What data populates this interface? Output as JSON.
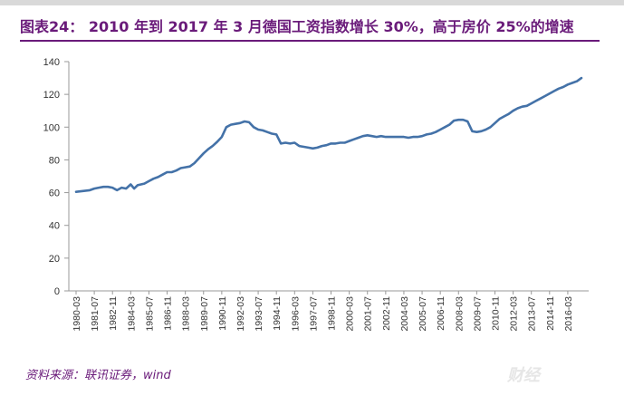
{
  "header": {
    "title": "图表24： 2010 年到 2017 年 3 月德国工资指数增长 30%，高于房价 25%的增速"
  },
  "footer": {
    "source": "资料来源：联讯证券，wind",
    "watermark": "财经"
  },
  "colors": {
    "title": "#6a1b7a",
    "line": "#4472a8",
    "axis": "#999999"
  },
  "chart_data": {
    "type": "line",
    "title": "",
    "xlabel": "",
    "ylabel": "",
    "ylim": [
      0,
      140
    ],
    "yticks": [
      0,
      20,
      40,
      60,
      80,
      100,
      120,
      140
    ],
    "xticks": [
      "1980-03",
      "1981-07",
      "1982-11",
      "1984-03",
      "1985-07",
      "1986-11",
      "1988-03",
      "1989-07",
      "1990-11",
      "1992-03",
      "1993-07",
      "1994-11",
      "1996-03",
      "1997-07",
      "1998-11",
      "2000-03",
      "2001-07",
      "2002-11",
      "2004-03",
      "2005-07",
      "2006-11",
      "2008-03",
      "2009-07",
      "2010-11",
      "2012-03",
      "2013-07",
      "2014-11",
      "2016-03"
    ],
    "grid": false,
    "legend": "none",
    "series": [
      {
        "name": "",
        "points": [
          [
            "1980-03",
            60.5
          ],
          [
            "1980-09",
            61
          ],
          [
            "1981-03",
            61.5
          ],
          [
            "1981-07",
            62.5
          ],
          [
            "1981-11",
            63
          ],
          [
            "1982-03",
            63.5
          ],
          [
            "1982-07",
            63.5
          ],
          [
            "1982-11",
            63
          ],
          [
            "1983-03",
            61.5
          ],
          [
            "1983-07",
            63
          ],
          [
            "1983-11",
            62.5
          ],
          [
            "1984-03",
            65
          ],
          [
            "1984-06",
            62.5
          ],
          [
            "1984-09",
            64.5
          ],
          [
            "1985-03",
            65.5
          ],
          [
            "1985-07",
            67
          ],
          [
            "1985-11",
            68.5
          ],
          [
            "1986-03",
            69.5
          ],
          [
            "1986-07",
            71
          ],
          [
            "1986-11",
            72.5
          ],
          [
            "1987-03",
            72.5
          ],
          [
            "1987-07",
            73.5
          ],
          [
            "1987-11",
            75
          ],
          [
            "1988-03",
            75.5
          ],
          [
            "1988-07",
            76
          ],
          [
            "1988-11",
            78
          ],
          [
            "1989-03",
            81
          ],
          [
            "1989-07",
            84
          ],
          [
            "1989-11",
            86.5
          ],
          [
            "1990-03",
            88.5
          ],
          [
            "1990-07",
            91
          ],
          [
            "1990-11",
            94
          ],
          [
            "1991-03",
            100
          ],
          [
            "1991-07",
            101.5
          ],
          [
            "1991-11",
            102
          ],
          [
            "1992-03",
            102.5
          ],
          [
            "1992-07",
            103.5
          ],
          [
            "1992-11",
            103
          ],
          [
            "1993-03",
            100
          ],
          [
            "1993-07",
            98.5
          ],
          [
            "1993-11",
            98
          ],
          [
            "1994-03",
            97
          ],
          [
            "1994-07",
            96
          ],
          [
            "1994-11",
            95.5
          ],
          [
            "1995-03",
            90
          ],
          [
            "1995-07",
            90.5
          ],
          [
            "1995-11",
            90
          ],
          [
            "1996-03",
            90.5
          ],
          [
            "1996-07",
            88.5
          ],
          [
            "1996-11",
            88
          ],
          [
            "1997-03",
            87.5
          ],
          [
            "1997-07",
            87
          ],
          [
            "1997-11",
            87.5
          ],
          [
            "1998-03",
            88.5
          ],
          [
            "1998-07",
            89
          ],
          [
            "1998-11",
            90
          ],
          [
            "1999-03",
            90
          ],
          [
            "1999-07",
            90.5
          ],
          [
            "1999-11",
            90.5
          ],
          [
            "2000-03",
            91.5
          ],
          [
            "2000-07",
            92.5
          ],
          [
            "2000-11",
            93.5
          ],
          [
            "2001-03",
            94.5
          ],
          [
            "2001-07",
            95
          ],
          [
            "2001-11",
            94.5
          ],
          [
            "2002-03",
            94
          ],
          [
            "2002-07",
            94.5
          ],
          [
            "2002-11",
            94
          ],
          [
            "2003-03",
            94
          ],
          [
            "2003-07",
            94
          ],
          [
            "2003-11",
            94
          ],
          [
            "2004-03",
            94
          ],
          [
            "2004-07",
            93.5
          ],
          [
            "2004-11",
            94
          ],
          [
            "2005-03",
            94
          ],
          [
            "2005-07",
            94.5
          ],
          [
            "2005-11",
            95.5
          ],
          [
            "2006-03",
            96
          ],
          [
            "2006-07",
            97
          ],
          [
            "2006-11",
            98.5
          ],
          [
            "2007-03",
            100
          ],
          [
            "2007-07",
            101.5
          ],
          [
            "2007-11",
            104
          ],
          [
            "2008-03",
            104.5
          ],
          [
            "2008-07",
            104.5
          ],
          [
            "2008-11",
            103.5
          ],
          [
            "2009-03",
            97.5
          ],
          [
            "2009-07",
            97
          ],
          [
            "2009-11",
            97.5
          ],
          [
            "2010-03",
            98.5
          ],
          [
            "2010-07",
            100
          ],
          [
            "2010-11",
            102.5
          ],
          [
            "2011-03",
            105
          ],
          [
            "2011-07",
            106.5
          ],
          [
            "2011-11",
            108
          ],
          [
            "2012-03",
            110
          ],
          [
            "2012-07",
            111.5
          ],
          [
            "2012-11",
            112.5
          ],
          [
            "2013-03",
            113
          ],
          [
            "2013-07",
            114.5
          ],
          [
            "2013-11",
            116
          ],
          [
            "2014-03",
            117.5
          ],
          [
            "2014-07",
            119
          ],
          [
            "2014-11",
            120.5
          ],
          [
            "2015-03",
            122
          ],
          [
            "2015-07",
            123.5
          ],
          [
            "2015-11",
            124.5
          ],
          [
            "2016-03",
            126
          ],
          [
            "2016-07",
            127
          ],
          [
            "2016-11",
            128
          ],
          [
            "2017-03",
            130
          ]
        ]
      }
    ]
  }
}
